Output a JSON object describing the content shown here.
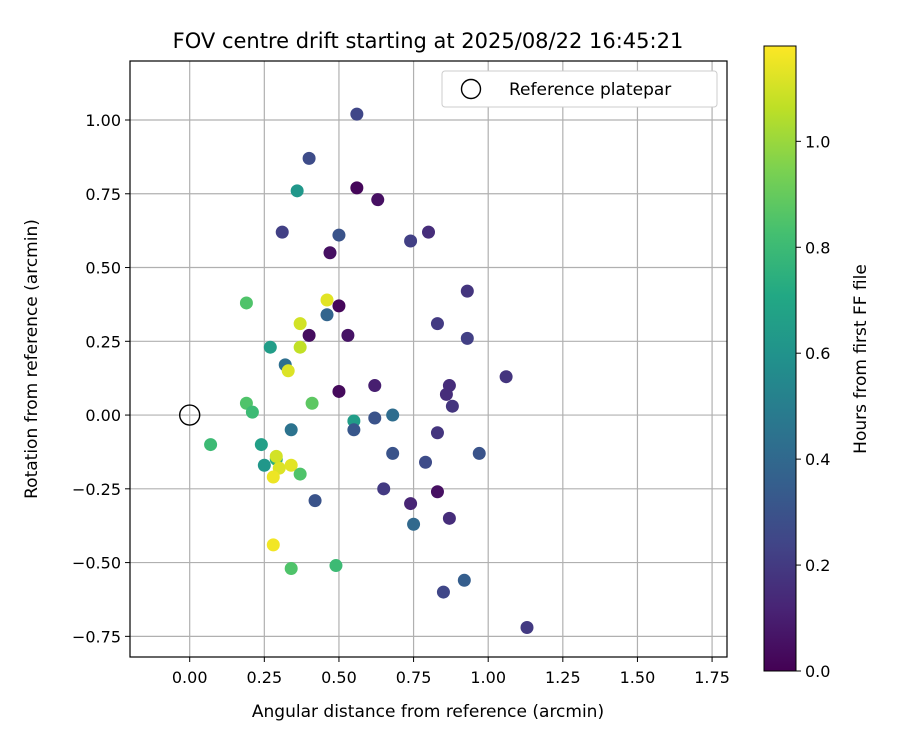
{
  "chart_data": {
    "type": "scatter",
    "title": "FOV centre drift starting at 2025/08/22 16:45:21",
    "xlabel": "Angular distance from reference (arcmin)",
    "ylabel": "Rotation from reference (arcmin)",
    "xlim": [
      -0.2,
      1.8
    ],
    "ylim": [
      -0.82,
      1.2
    ],
    "x_ticks": [
      "0.00",
      "0.25",
      "0.50",
      "0.75",
      "1.00",
      "1.25",
      "1.50",
      "1.75"
    ],
    "y_ticks": [
      "−0.75",
      "−0.50",
      "−0.25",
      "0.00",
      "0.25",
      "0.50",
      "0.75",
      "1.00"
    ],
    "grid": true,
    "legend_position": "top-right",
    "colormap": "viridis",
    "colorbar": {
      "label": "Hours from first FF file",
      "range": [
        0,
        1.18
      ],
      "ticks": [
        "0.0",
        "0.2",
        "0.4",
        "0.6",
        "0.8",
        "1.0"
      ]
    },
    "reference": {
      "name": "Reference platepar",
      "x": 0.0,
      "y": 0.0
    },
    "points": [
      {
        "x": 0.56,
        "y": 1.02,
        "h": 0.25
      },
      {
        "x": 0.4,
        "y": 0.87,
        "h": 0.27
      },
      {
        "x": 0.36,
        "y": 0.76,
        "h": 0.62
      },
      {
        "x": 0.56,
        "y": 0.77,
        "h": 0.02
      },
      {
        "x": 0.63,
        "y": 0.73,
        "h": 0.05
      },
      {
        "x": 0.31,
        "y": 0.62,
        "h": 0.22
      },
      {
        "x": 0.5,
        "y": 0.61,
        "h": 0.3
      },
      {
        "x": 0.74,
        "y": 0.59,
        "h": 0.22
      },
      {
        "x": 0.8,
        "y": 0.62,
        "h": 0.15
      },
      {
        "x": 0.47,
        "y": 0.55,
        "h": 0.05
      },
      {
        "x": 0.19,
        "y": 0.38,
        "h": 0.85
      },
      {
        "x": 0.46,
        "y": 0.39,
        "h": 1.13
      },
      {
        "x": 0.5,
        "y": 0.37,
        "h": 0.02
      },
      {
        "x": 0.93,
        "y": 0.42,
        "h": 0.18
      },
      {
        "x": 0.37,
        "y": 0.31,
        "h": 1.1
      },
      {
        "x": 0.46,
        "y": 0.34,
        "h": 0.38
      },
      {
        "x": 0.83,
        "y": 0.31,
        "h": 0.2
      },
      {
        "x": 0.4,
        "y": 0.27,
        "h": 0.04
      },
      {
        "x": 0.53,
        "y": 0.27,
        "h": 0.06
      },
      {
        "x": 0.93,
        "y": 0.26,
        "h": 0.22
      },
      {
        "x": 0.27,
        "y": 0.23,
        "h": 0.65
      },
      {
        "x": 0.37,
        "y": 0.23,
        "h": 1.07
      },
      {
        "x": 0.32,
        "y": 0.17,
        "h": 0.43
      },
      {
        "x": 0.33,
        "y": 0.15,
        "h": 1.12
      },
      {
        "x": 1.06,
        "y": 0.13,
        "h": 0.18
      },
      {
        "x": 0.62,
        "y": 0.1,
        "h": 0.1
      },
      {
        "x": 0.87,
        "y": 0.1,
        "h": 0.15
      },
      {
        "x": 0.5,
        "y": 0.08,
        "h": 0.03
      },
      {
        "x": 0.86,
        "y": 0.07,
        "h": 0.15
      },
      {
        "x": 0.88,
        "y": 0.03,
        "h": 0.18
      },
      {
        "x": 0.19,
        "y": 0.04,
        "h": 0.85
      },
      {
        "x": 0.41,
        "y": 0.04,
        "h": 0.88
      },
      {
        "x": 0.21,
        "y": 0.01,
        "h": 0.8
      },
      {
        "x": 0.68,
        "y": 0.0,
        "h": 0.42
      },
      {
        "x": 0.55,
        "y": -0.02,
        "h": 0.65
      },
      {
        "x": 0.62,
        "y": -0.01,
        "h": 0.3
      },
      {
        "x": 0.55,
        "y": -0.05,
        "h": 0.32
      },
      {
        "x": 0.34,
        "y": -0.05,
        "h": 0.45
      },
      {
        "x": 0.83,
        "y": -0.06,
        "h": 0.18
      },
      {
        "x": 0.07,
        "y": -0.1,
        "h": 0.8
      },
      {
        "x": 0.24,
        "y": -0.1,
        "h": 0.66
      },
      {
        "x": 0.97,
        "y": -0.13,
        "h": 0.3
      },
      {
        "x": 0.68,
        "y": -0.13,
        "h": 0.3
      },
      {
        "x": 0.29,
        "y": -0.15,
        "h": 0.75
      },
      {
        "x": 0.79,
        "y": -0.16,
        "h": 0.27
      },
      {
        "x": 0.25,
        "y": -0.17,
        "h": 0.62
      },
      {
        "x": 0.3,
        "y": -0.18,
        "h": 1.12
      },
      {
        "x": 0.34,
        "y": -0.17,
        "h": 1.13
      },
      {
        "x": 0.37,
        "y": -0.2,
        "h": 0.85
      },
      {
        "x": 0.28,
        "y": -0.21,
        "h": 1.15
      },
      {
        "x": 0.29,
        "y": -0.14,
        "h": 1.1
      },
      {
        "x": 0.65,
        "y": -0.25,
        "h": 0.2
      },
      {
        "x": 0.83,
        "y": -0.26,
        "h": 0.05
      },
      {
        "x": 0.42,
        "y": -0.29,
        "h": 0.3
      },
      {
        "x": 0.74,
        "y": -0.3,
        "h": 0.12
      },
      {
        "x": 0.87,
        "y": -0.35,
        "h": 0.15
      },
      {
        "x": 0.75,
        "y": -0.37,
        "h": 0.4
      },
      {
        "x": 0.28,
        "y": -0.44,
        "h": 1.16
      },
      {
        "x": 0.49,
        "y": -0.51,
        "h": 0.8
      },
      {
        "x": 0.34,
        "y": -0.52,
        "h": 0.85
      },
      {
        "x": 0.92,
        "y": -0.56,
        "h": 0.35
      },
      {
        "x": 0.85,
        "y": -0.6,
        "h": 0.25
      },
      {
        "x": 1.13,
        "y": -0.72,
        "h": 0.2
      }
    ]
  }
}
